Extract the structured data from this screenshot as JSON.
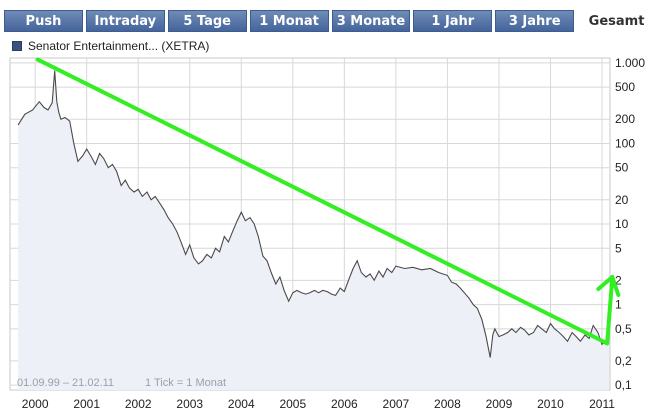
{
  "tabs": [
    {
      "label": "Push",
      "active": false
    },
    {
      "label": "Intraday",
      "active": false
    },
    {
      "label": "5 Tage",
      "active": false
    },
    {
      "label": "1 Monat",
      "active": false
    },
    {
      "label": "3 Monate",
      "active": false
    },
    {
      "label": "1 Jahr",
      "active": false
    },
    {
      "label": "3 Jahre",
      "active": false
    },
    {
      "label": "Gesamt",
      "active": true
    }
  ],
  "legend": {
    "label": "Senator Entertainment... (XETRA)"
  },
  "footer": {
    "range": "01.09.99 – 21.02.11",
    "tick": "1 Tick = 1 Monat"
  },
  "colors": {
    "tab": "#5773a6",
    "line": "#4a4a4a",
    "fill": "#eef0f8",
    "grid": "#d8d8d8",
    "trend_arrow": "#33ee22"
  },
  "chart_data": {
    "type": "area",
    "yscale": "log",
    "ylim": [
      0.1,
      1000
    ],
    "xlim": [
      1999.67,
      2011.14
    ],
    "y_ticks": [
      {
        "value": 1000,
        "label": "1.000"
      },
      {
        "value": 500,
        "label": "500"
      },
      {
        "value": 200,
        "label": "200"
      },
      {
        "value": 100,
        "label": "100"
      },
      {
        "value": 50,
        "label": "50"
      },
      {
        "value": 20,
        "label": "20"
      },
      {
        "value": 10,
        "label": "10"
      },
      {
        "value": 5,
        "label": "5"
      },
      {
        "value": 2,
        "label": "2"
      },
      {
        "value": 1,
        "label": "1"
      },
      {
        "value": 0.5,
        "label": "0,5"
      },
      {
        "value": 0.2,
        "label": "0,2"
      },
      {
        "value": 0.1,
        "label": "0,1"
      }
    ],
    "x_ticks": [
      "2000",
      "2001",
      "2002",
      "2003",
      "2004",
      "2005",
      "2006",
      "2007",
      "2008",
      "2009",
      "2010",
      "2011"
    ],
    "series": [
      {
        "points": [
          [
            1999.67,
            170
          ],
          [
            1999.8,
            230
          ],
          [
            1999.95,
            260
          ],
          [
            2000.08,
            330
          ],
          [
            2000.17,
            280
          ],
          [
            2000.25,
            260
          ],
          [
            2000.33,
            320
          ],
          [
            2000.38,
            800
          ],
          [
            2000.42,
            330
          ],
          [
            2000.46,
            240
          ],
          [
            2000.5,
            200
          ],
          [
            2000.58,
            210
          ],
          [
            2000.67,
            190
          ],
          [
            2000.75,
            100
          ],
          [
            2000.83,
            60
          ],
          [
            2000.92,
            70
          ],
          [
            2001.0,
            85
          ],
          [
            2001.08,
            70
          ],
          [
            2001.17,
            55
          ],
          [
            2001.25,
            75
          ],
          [
            2001.33,
            65
          ],
          [
            2001.42,
            50
          ],
          [
            2001.5,
            55
          ],
          [
            2001.58,
            45
          ],
          [
            2001.67,
            30
          ],
          [
            2001.75,
            35
          ],
          [
            2001.83,
            28
          ],
          [
            2001.92,
            25
          ],
          [
            2002.0,
            27
          ],
          [
            2002.08,
            22
          ],
          [
            2002.17,
            25
          ],
          [
            2002.25,
            20
          ],
          [
            2002.33,
            22
          ],
          [
            2002.42,
            18
          ],
          [
            2002.5,
            15
          ],
          [
            2002.58,
            12
          ],
          [
            2002.67,
            10
          ],
          [
            2002.75,
            8
          ],
          [
            2002.83,
            6
          ],
          [
            2002.92,
            4.2
          ],
          [
            2003.0,
            5.5
          ],
          [
            2003.08,
            3.8
          ],
          [
            2003.17,
            3.2
          ],
          [
            2003.25,
            3.5
          ],
          [
            2003.33,
            4.2
          ],
          [
            2003.42,
            3.8
          ],
          [
            2003.5,
            5
          ],
          [
            2003.58,
            4.5
          ],
          [
            2003.67,
            7
          ],
          [
            2003.75,
            6
          ],
          [
            2003.83,
            8
          ],
          [
            2003.92,
            11
          ],
          [
            2004.0,
            14
          ],
          [
            2004.08,
            11
          ],
          [
            2004.17,
            12
          ],
          [
            2004.25,
            10
          ],
          [
            2004.33,
            7
          ],
          [
            2004.42,
            4
          ],
          [
            2004.5,
            3.5
          ],
          [
            2004.58,
            2.5
          ],
          [
            2004.67,
            1.8
          ],
          [
            2004.75,
            2.2
          ],
          [
            2004.83,
            1.5
          ],
          [
            2004.92,
            1.1
          ],
          [
            2005.0,
            1.4
          ],
          [
            2005.08,
            1.5
          ],
          [
            2005.17,
            1.4
          ],
          [
            2005.25,
            1.35
          ],
          [
            2005.33,
            1.4
          ],
          [
            2005.42,
            1.5
          ],
          [
            2005.5,
            1.4
          ],
          [
            2005.58,
            1.5
          ],
          [
            2005.67,
            1.45
          ],
          [
            2005.75,
            1.35
          ],
          [
            2005.83,
            1.3
          ],
          [
            2005.92,
            1.6
          ],
          [
            2006.0,
            1.45
          ],
          [
            2006.08,
            2.0
          ],
          [
            2006.17,
            2.8
          ],
          [
            2006.25,
            3.5
          ],
          [
            2006.33,
            2.5
          ],
          [
            2006.42,
            2.2
          ],
          [
            2006.5,
            2.4
          ],
          [
            2006.58,
            2.0
          ],
          [
            2006.67,
            2.6
          ],
          [
            2006.75,
            2.2
          ],
          [
            2006.83,
            2.8
          ],
          [
            2006.92,
            2.5
          ],
          [
            2007.0,
            3.0
          ],
          [
            2007.17,
            2.8
          ],
          [
            2007.33,
            2.9
          ],
          [
            2007.5,
            2.7
          ],
          [
            2007.67,
            2.8
          ],
          [
            2007.83,
            2.5
          ],
          [
            2008.0,
            2.3
          ],
          [
            2008.08,
            1.9
          ],
          [
            2008.17,
            1.8
          ],
          [
            2008.25,
            1.6
          ],
          [
            2008.33,
            1.4
          ],
          [
            2008.42,
            1.2
          ],
          [
            2008.5,
            1.0
          ],
          [
            2008.58,
            0.9
          ],
          [
            2008.67,
            0.65
          ],
          [
            2008.75,
            0.4
          ],
          [
            2008.83,
            0.22
          ],
          [
            2008.88,
            0.42
          ],
          [
            2008.92,
            0.5
          ],
          [
            2009.0,
            0.4
          ],
          [
            2009.08,
            0.42
          ],
          [
            2009.17,
            0.45
          ],
          [
            2009.25,
            0.5
          ],
          [
            2009.33,
            0.45
          ],
          [
            2009.42,
            0.52
          ],
          [
            2009.5,
            0.48
          ],
          [
            2009.58,
            0.42
          ],
          [
            2009.67,
            0.45
          ],
          [
            2009.75,
            0.55
          ],
          [
            2009.83,
            0.5
          ],
          [
            2009.92,
            0.45
          ],
          [
            2010.0,
            0.58
          ],
          [
            2010.08,
            0.5
          ],
          [
            2010.17,
            0.45
          ],
          [
            2010.25,
            0.4
          ],
          [
            2010.33,
            0.35
          ],
          [
            2010.42,
            0.45
          ],
          [
            2010.5,
            0.4
          ],
          [
            2010.58,
            0.35
          ],
          [
            2010.67,
            0.42
          ],
          [
            2010.75,
            0.38
          ],
          [
            2010.83,
            0.55
          ],
          [
            2010.92,
            0.45
          ],
          [
            2011.0,
            0.32
          ],
          [
            2011.08,
            0.36
          ],
          [
            2011.14,
            0.35
          ]
        ]
      }
    ],
    "annotations": [
      {
        "type": "arrow",
        "from": [
          2000.05,
          1100
        ],
        "to": [
          2011.1,
          0.33
        ]
      },
      {
        "type": "arrow",
        "from": [
          2011.1,
          0.33
        ],
        "to": [
          2011.2,
          2.2
        ]
      }
    ]
  }
}
